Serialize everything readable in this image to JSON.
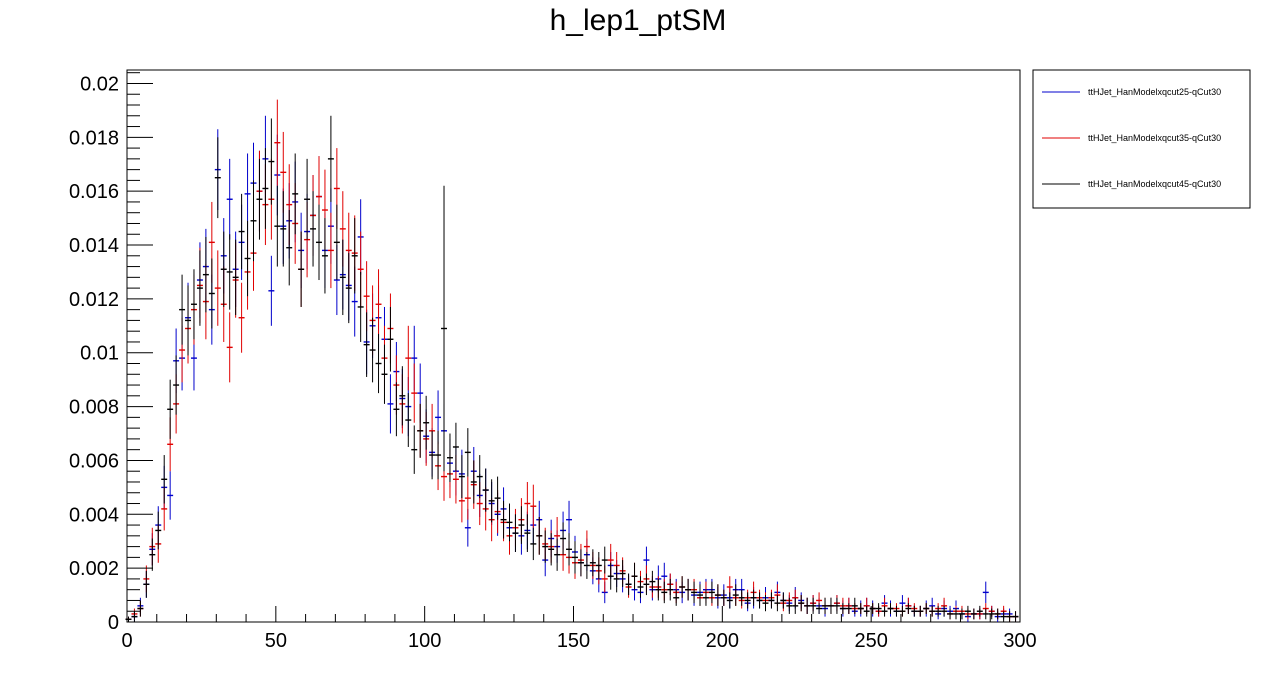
{
  "chart_data": {
    "type": "scatter",
    "title": "h_lep1_ptSM",
    "xlabel": "",
    "ylabel": "",
    "xlim": [
      0,
      300
    ],
    "ylim": [
      0,
      0.0205
    ],
    "x_ticks": [
      0,
      50,
      100,
      150,
      200,
      250,
      300
    ],
    "x_tick_labels": [
      "0",
      "50",
      "100",
      "150",
      "200",
      "250",
      "300"
    ],
    "y_ticks": [
      0,
      0.002,
      0.004,
      0.006,
      0.008,
      0.01,
      0.012,
      0.014,
      0.016,
      0.018,
      0.02
    ],
    "y_tick_labels": [
      "0",
      "0.002",
      "0.004",
      "0.006",
      "0.008",
      "0.01",
      "0.012",
      "0.014",
      "0.016",
      "0.018",
      "0.02"
    ],
    "grid": false,
    "legend_position": "top-right, outside plot area",
    "x_bin_centers": [
      0.5,
      2.5,
      4.5,
      6.5,
      8.5,
      10.5,
      12.5,
      14.5,
      16.5,
      18.5,
      20.5,
      22.5,
      24.5,
      26.5,
      28.5,
      30.5,
      32.5,
      34.5,
      36.5,
      38.5,
      40.5,
      42.5,
      44.5,
      46.5,
      48.5,
      50.5,
      52.5,
      54.5,
      56.5,
      58.5,
      60.5,
      62.5,
      64.5,
      66.5,
      68.5,
      70.5,
      72.5,
      74.5,
      76.5,
      78.5,
      80.5,
      82.5,
      84.5,
      86.5,
      88.5,
      90.5,
      92.5,
      94.5,
      96.5,
      98.5,
      100.5,
      102.5,
      104.5,
      106.5,
      108.5,
      110.5,
      112.5,
      114.5,
      116.5,
      118.5,
      120.5,
      122.5,
      124.5,
      126.5,
      128.5,
      130.5,
      132.5,
      134.5,
      136.5,
      138.5,
      140.5,
      142.5,
      144.5,
      146.5,
      148.5,
      150.5,
      152.5,
      154.5,
      156.5,
      158.5,
      160.5,
      162.5,
      164.5,
      166.5,
      168.5,
      170.5,
      172.5,
      174.5,
      176.5,
      178.5,
      180.5,
      182.5,
      184.5,
      186.5,
      188.5,
      190.5,
      192.5,
      194.5,
      196.5,
      198.5,
      200.5,
      202.5,
      204.5,
      206.5,
      208.5,
      210.5,
      212.5,
      214.5,
      216.5,
      218.5,
      220.5,
      222.5,
      224.5,
      226.5,
      228.5,
      230.5,
      232.5,
      234.5,
      236.5,
      238.5,
      240.5,
      242.5,
      244.5,
      246.5,
      248.5,
      250.5,
      252.5,
      254.5,
      256.5,
      258.5,
      260.5,
      262.5,
      264.5,
      266.5,
      268.5,
      270.5,
      272.5,
      274.5,
      276.5,
      278.5,
      280.5,
      282.5,
      284.5,
      286.5,
      288.5,
      290.5,
      292.5,
      294.5,
      296.5,
      298.5
    ],
    "series": [
      {
        "name": "ttHJet_HanModelxqcut25-qCut30",
        "color": "#0000cc",
        "values": [
          0.0001,
          0.0002,
          0.0006,
          0.0014,
          0.0027,
          0.0036,
          0.005,
          0.0047,
          0.0097,
          0.0098,
          0.0113,
          0.0098,
          0.0127,
          0.0132,
          0.0116,
          0.0168,
          0.0136,
          0.0157,
          0.0131,
          0.0141,
          0.0159,
          0.0163,
          0.016,
          0.0172,
          0.0123,
          0.0166,
          0.0147,
          0.0149,
          0.0156,
          0.0138,
          0.0145,
          0.0151,
          0.0158,
          0.0138,
          0.0147,
          0.0127,
          0.0129,
          0.0125,
          0.0119,
          0.0143,
          0.0104,
          0.011,
          0.0113,
          0.0105,
          0.0081,
          0.0093,
          0.0083,
          0.008,
          0.0098,
          0.0085,
          0.0069,
          0.0063,
          0.0076,
          0.0071,
          0.0059,
          0.0056,
          0.0055,
          0.0035,
          0.0056,
          0.0047,
          0.0049,
          0.0044,
          0.004,
          0.0042,
          0.0035,
          0.0033,
          0.0032,
          0.0034,
          0.0036,
          0.0038,
          0.0023,
          0.0031,
          0.0028,
          0.0034,
          0.0038,
          0.0026,
          0.0022,
          0.0025,
          0.0019,
          0.0016,
          0.0011,
          0.0021,
          0.0018,
          0.0016,
          0.0014,
          0.0012,
          0.0011,
          0.0023,
          0.0012,
          0.0016,
          0.0017,
          0.0014,
          0.0012,
          0.0011,
          0.0012,
          0.001,
          0.0011,
          0.0012,
          0.0012,
          0.0009,
          0.001,
          0.0009,
          0.0012,
          0.0012,
          0.0007,
          0.0009,
          0.0008,
          0.0009,
          0.0008,
          0.0011,
          0.0008,
          0.0007,
          0.0009,
          0.0008,
          0.0006,
          0.0007,
          0.0006,
          0.0005,
          0.0006,
          0.0007,
          0.0005,
          0.0006,
          0.0004,
          0.0005,
          0.0006,
          0.0005,
          0.0004,
          0.0007,
          0.0005,
          0.0004,
          0.0007,
          0.0006,
          0.0004,
          0.0004,
          0.0005,
          0.0006,
          0.0003,
          0.0005,
          0.0004,
          0.0005,
          0.0003,
          0.0002,
          0.0003,
          0.0003,
          0.0011,
          0.0004,
          0.0002,
          0.0003,
          0.0003,
          0.0002
        ],
        "errors": [
          0.0001,
          0.0002,
          0.0003,
          0.0005,
          0.0006,
          0.0007,
          0.0008,
          0.0009,
          0.0012,
          0.0012,
          0.0013,
          0.0012,
          0.0014,
          0.0014,
          0.0013,
          0.0015,
          0.0014,
          0.0015,
          0.0014,
          0.0014,
          0.0015,
          0.0015,
          0.0015,
          0.0016,
          0.0013,
          0.0015,
          0.0014,
          0.0014,
          0.0015,
          0.0014,
          0.0014,
          0.0015,
          0.0015,
          0.0014,
          0.0014,
          0.0013,
          0.0013,
          0.0013,
          0.0013,
          0.0014,
          0.0012,
          0.0012,
          0.0012,
          0.0012,
          0.0011,
          0.0011,
          0.0011,
          0.0011,
          0.0012,
          0.0011,
          0.001,
          0.0009,
          0.001,
          0.001,
          0.0009,
          0.0009,
          0.0009,
          0.0007,
          0.0009,
          0.0008,
          0.0008,
          0.0008,
          0.0008,
          0.0008,
          0.0007,
          0.0007,
          0.0007,
          0.0007,
          0.0007,
          0.0007,
          0.0006,
          0.0007,
          0.0006,
          0.0007,
          0.0007,
          0.0006,
          0.0005,
          0.0006,
          0.0005,
          0.0005,
          0.0004,
          0.0005,
          0.0005,
          0.0005,
          0.0004,
          0.0004,
          0.0004,
          0.0005,
          0.0004,
          0.0005,
          0.0005,
          0.0004,
          0.0004,
          0.0004,
          0.0004,
          0.0004,
          0.0004,
          0.0004,
          0.0004,
          0.0004,
          0.0004,
          0.0004,
          0.0004,
          0.0004,
          0.0003,
          0.0004,
          0.0003,
          0.0004,
          0.0003,
          0.0004,
          0.0003,
          0.0003,
          0.0004,
          0.0003,
          0.0003,
          0.0003,
          0.0003,
          0.0003,
          0.0003,
          0.0003,
          0.0003,
          0.0003,
          0.0002,
          0.0003,
          0.0003,
          0.0003,
          0.0002,
          0.0003,
          0.0003,
          0.0002,
          0.0003,
          0.0003,
          0.0002,
          0.0002,
          0.0003,
          0.0003,
          0.0002,
          0.0003,
          0.0002,
          0.0003,
          0.0002,
          0.0002,
          0.0002,
          0.0002,
          0.0004,
          0.0002,
          0.0002,
          0.0002,
          0.0002,
          0.0002
        ]
      },
      {
        "name": "ttHJet_HanModelxqcut35-qCut30",
        "color": "#e00000",
        "values": [
          0.0001,
          0.0003,
          0.0005,
          0.0016,
          0.0028,
          0.0029,
          0.0042,
          0.0066,
          0.0081,
          0.0101,
          0.0109,
          0.0116,
          0.0125,
          0.0119,
          0.0141,
          0.0124,
          0.0118,
          0.0102,
          0.0127,
          0.0113,
          0.013,
          0.0137,
          0.016,
          0.0155,
          0.0157,
          0.0178,
          0.0167,
          0.0155,
          0.0148,
          0.0131,
          0.0142,
          0.0151,
          0.0158,
          0.0153,
          0.0138,
          0.0161,
          0.0146,
          0.0138,
          0.0137,
          0.0131,
          0.0121,
          0.0112,
          0.0118,
          0.0098,
          0.0109,
          0.0088,
          0.0081,
          0.0098,
          0.0085,
          0.0071,
          0.0068,
          0.0071,
          0.0058,
          0.0054,
          0.0055,
          0.0053,
          0.0045,
          0.0046,
          0.0051,
          0.0044,
          0.0042,
          0.0038,
          0.0041,
          0.0037,
          0.0032,
          0.0035,
          0.0038,
          0.0044,
          0.0043,
          0.0032,
          0.0029,
          0.0028,
          0.0032,
          0.0025,
          0.0024,
          0.0022,
          0.0023,
          0.0028,
          0.0021,
          0.0019,
          0.0016,
          0.0023,
          0.0021,
          0.0019,
          0.0013,
          0.0017,
          0.0015,
          0.0016,
          0.0013,
          0.0013,
          0.0012,
          0.0014,
          0.0011,
          0.0013,
          0.0012,
          0.0012,
          0.0009,
          0.0011,
          0.0009,
          0.001,
          0.0009,
          0.0013,
          0.0009,
          0.0008,
          0.0009,
          0.0011,
          0.0009,
          0.0008,
          0.0009,
          0.001,
          0.0007,
          0.0008,
          0.0009,
          0.0007,
          0.0006,
          0.0007,
          0.0008,
          0.0006,
          0.0006,
          0.0007,
          0.0006,
          0.0006,
          0.0005,
          0.0005,
          0.0006,
          0.0005,
          0.0004,
          0.0006,
          0.0005,
          0.0005,
          0.0004,
          0.0006,
          0.0005,
          0.0004,
          0.0005,
          0.0004,
          0.0005,
          0.0006,
          0.0003,
          0.0004,
          0.0004,
          0.0003,
          0.0003,
          0.0003,
          0.0005,
          0.0004,
          0.0003,
          0.0004,
          0.0002,
          0.0002
        ],
        "errors": [
          0.0001,
          0.0002,
          0.0003,
          0.0005,
          0.0007,
          0.0007,
          0.0008,
          0.001,
          0.0011,
          0.0012,
          0.0013,
          0.0013,
          0.0014,
          0.0014,
          0.0015,
          0.0014,
          0.0014,
          0.0013,
          0.0014,
          0.0013,
          0.0014,
          0.0014,
          0.0015,
          0.0015,
          0.0015,
          0.0016,
          0.0015,
          0.0015,
          0.0015,
          0.0014,
          0.0014,
          0.0015,
          0.0015,
          0.0015,
          0.0014,
          0.0015,
          0.0014,
          0.0014,
          0.0014,
          0.0014,
          0.0013,
          0.0013,
          0.0013,
          0.0012,
          0.0013,
          0.0011,
          0.0011,
          0.0012,
          0.0011,
          0.001,
          0.001,
          0.001,
          0.0009,
          0.0009,
          0.0009,
          0.0009,
          0.0008,
          0.0008,
          0.0009,
          0.0008,
          0.0008,
          0.0008,
          0.0008,
          0.0007,
          0.0007,
          0.0007,
          0.0008,
          0.0008,
          0.0008,
          0.0007,
          0.0006,
          0.0006,
          0.0007,
          0.0006,
          0.0006,
          0.0006,
          0.0006,
          0.0006,
          0.0005,
          0.0005,
          0.0005,
          0.0006,
          0.0005,
          0.0005,
          0.0004,
          0.0005,
          0.0004,
          0.0005,
          0.0004,
          0.0004,
          0.0004,
          0.0004,
          0.0004,
          0.0004,
          0.0004,
          0.0004,
          0.0003,
          0.0004,
          0.0003,
          0.0004,
          0.0003,
          0.0004,
          0.0003,
          0.0003,
          0.0003,
          0.0004,
          0.0003,
          0.0003,
          0.0003,
          0.0004,
          0.0003,
          0.0003,
          0.0003,
          0.0003,
          0.0003,
          0.0003,
          0.0003,
          0.0003,
          0.0003,
          0.0003,
          0.0003,
          0.0003,
          0.0002,
          0.0002,
          0.0003,
          0.0002,
          0.0002,
          0.0003,
          0.0002,
          0.0002,
          0.0002,
          0.0003,
          0.0002,
          0.0002,
          0.0002,
          0.0002,
          0.0002,
          0.0003,
          0.0002,
          0.0002,
          0.0002,
          0.0002,
          0.0002,
          0.0002,
          0.0002,
          0.0002,
          0.0002,
          0.0002,
          0.0002,
          0.0002
        ]
      },
      {
        "name": "ttHJet_HanModelxqcut45-qCut30",
        "color": "#000000",
        "values": [
          0.0001,
          0.0002,
          0.0005,
          0.0014,
          0.0025,
          0.0034,
          0.0053,
          0.0079,
          0.0088,
          0.0116,
          0.0112,
          0.0118,
          0.0124,
          0.0129,
          0.0122,
          0.0165,
          0.0131,
          0.013,
          0.0128,
          0.0145,
          0.0135,
          0.0149,
          0.0157,
          0.0161,
          0.0171,
          0.0147,
          0.0146,
          0.0139,
          0.0159,
          0.0131,
          0.0157,
          0.0146,
          0.0141,
          0.0136,
          0.0172,
          0.0141,
          0.0128,
          0.0124,
          0.0136,
          0.0117,
          0.0103,
          0.0101,
          0.0096,
          0.0092,
          0.0105,
          0.0079,
          0.0084,
          0.0075,
          0.0064,
          0.0071,
          0.0074,
          0.0062,
          0.0062,
          0.0109,
          0.0061,
          0.0065,
          0.0054,
          0.0063,
          0.0052,
          0.0054,
          0.0049,
          0.0045,
          0.0046,
          0.0038,
          0.0037,
          0.0033,
          0.0036,
          0.0033,
          0.0029,
          0.0032,
          0.0028,
          0.0027,
          0.0025,
          0.0031,
          0.0027,
          0.0024,
          0.0022,
          0.0021,
          0.0022,
          0.0021,
          0.0023,
          0.0017,
          0.0016,
          0.0018,
          0.0014,
          0.0017,
          0.0013,
          0.0014,
          0.0015,
          0.0012,
          0.0011,
          0.0012,
          0.0009,
          0.0013,
          0.0012,
          0.0011,
          0.001,
          0.0009,
          0.0011,
          0.001,
          0.0009,
          0.0008,
          0.001,
          0.0009,
          0.0008,
          0.0009,
          0.0008,
          0.0007,
          0.0008,
          0.0007,
          0.0008,
          0.0006,
          0.0006,
          0.0007,
          0.0006,
          0.0006,
          0.0005,
          0.0006,
          0.0006,
          0.0006,
          0.0005,
          0.0005,
          0.0006,
          0.0005,
          0.0004,
          0.0005,
          0.0005,
          0.0004,
          0.0005,
          0.0004,
          0.0004,
          0.0005,
          0.0004,
          0.0004,
          0.0005,
          0.0004,
          0.0004,
          0.0004,
          0.0003,
          0.0003,
          0.0003,
          0.0004,
          0.0003,
          0.0004,
          0.0003,
          0.0003,
          0.0003,
          0.0002,
          0.0002,
          0.0002
        ],
        "errors": [
          0.0001,
          0.0002,
          0.0003,
          0.0005,
          0.0006,
          0.0007,
          0.0009,
          0.0011,
          0.0011,
          0.0013,
          0.0013,
          0.0013,
          0.0014,
          0.0014,
          0.0013,
          0.0015,
          0.0014,
          0.0014,
          0.0014,
          0.0014,
          0.0014,
          0.0015,
          0.0015,
          0.0015,
          0.0016,
          0.0015,
          0.0014,
          0.0014,
          0.0015,
          0.0014,
          0.0015,
          0.0014,
          0.0014,
          0.0014,
          0.0016,
          0.0014,
          0.0014,
          0.0013,
          0.0014,
          0.0013,
          0.0012,
          0.0012,
          0.0011,
          0.0011,
          0.0012,
          0.001,
          0.0011,
          0.001,
          0.0009,
          0.001,
          0.001,
          0.0009,
          0.0009,
          0.0053,
          0.0009,
          0.0009,
          0.0008,
          0.0009,
          0.0008,
          0.0008,
          0.0008,
          0.0008,
          0.0008,
          0.0007,
          0.0007,
          0.0007,
          0.0007,
          0.0007,
          0.0006,
          0.0007,
          0.0006,
          0.0006,
          0.0006,
          0.0006,
          0.0006,
          0.0006,
          0.0005,
          0.0005,
          0.0005,
          0.0005,
          0.0005,
          0.0005,
          0.0005,
          0.0005,
          0.0004,
          0.0005,
          0.0004,
          0.0004,
          0.0004,
          0.0004,
          0.0004,
          0.0004,
          0.0003,
          0.0004,
          0.0004,
          0.0004,
          0.0004,
          0.0003,
          0.0004,
          0.0004,
          0.0003,
          0.0003,
          0.0004,
          0.0003,
          0.0003,
          0.0003,
          0.0003,
          0.0003,
          0.0003,
          0.0003,
          0.0003,
          0.0003,
          0.0003,
          0.0003,
          0.0003,
          0.0003,
          0.0002,
          0.0003,
          0.0003,
          0.0003,
          0.0002,
          0.0002,
          0.0003,
          0.0002,
          0.0002,
          0.0002,
          0.0002,
          0.0002,
          0.0002,
          0.0002,
          0.0002,
          0.0002,
          0.0002,
          0.0002,
          0.0002,
          0.0002,
          0.0002,
          0.0002,
          0.0002,
          0.0002,
          0.0002,
          0.0002,
          0.0002,
          0.0002,
          0.0002,
          0.0002,
          0.0002,
          0.0002,
          0.0002,
          0.0002
        ]
      }
    ]
  }
}
